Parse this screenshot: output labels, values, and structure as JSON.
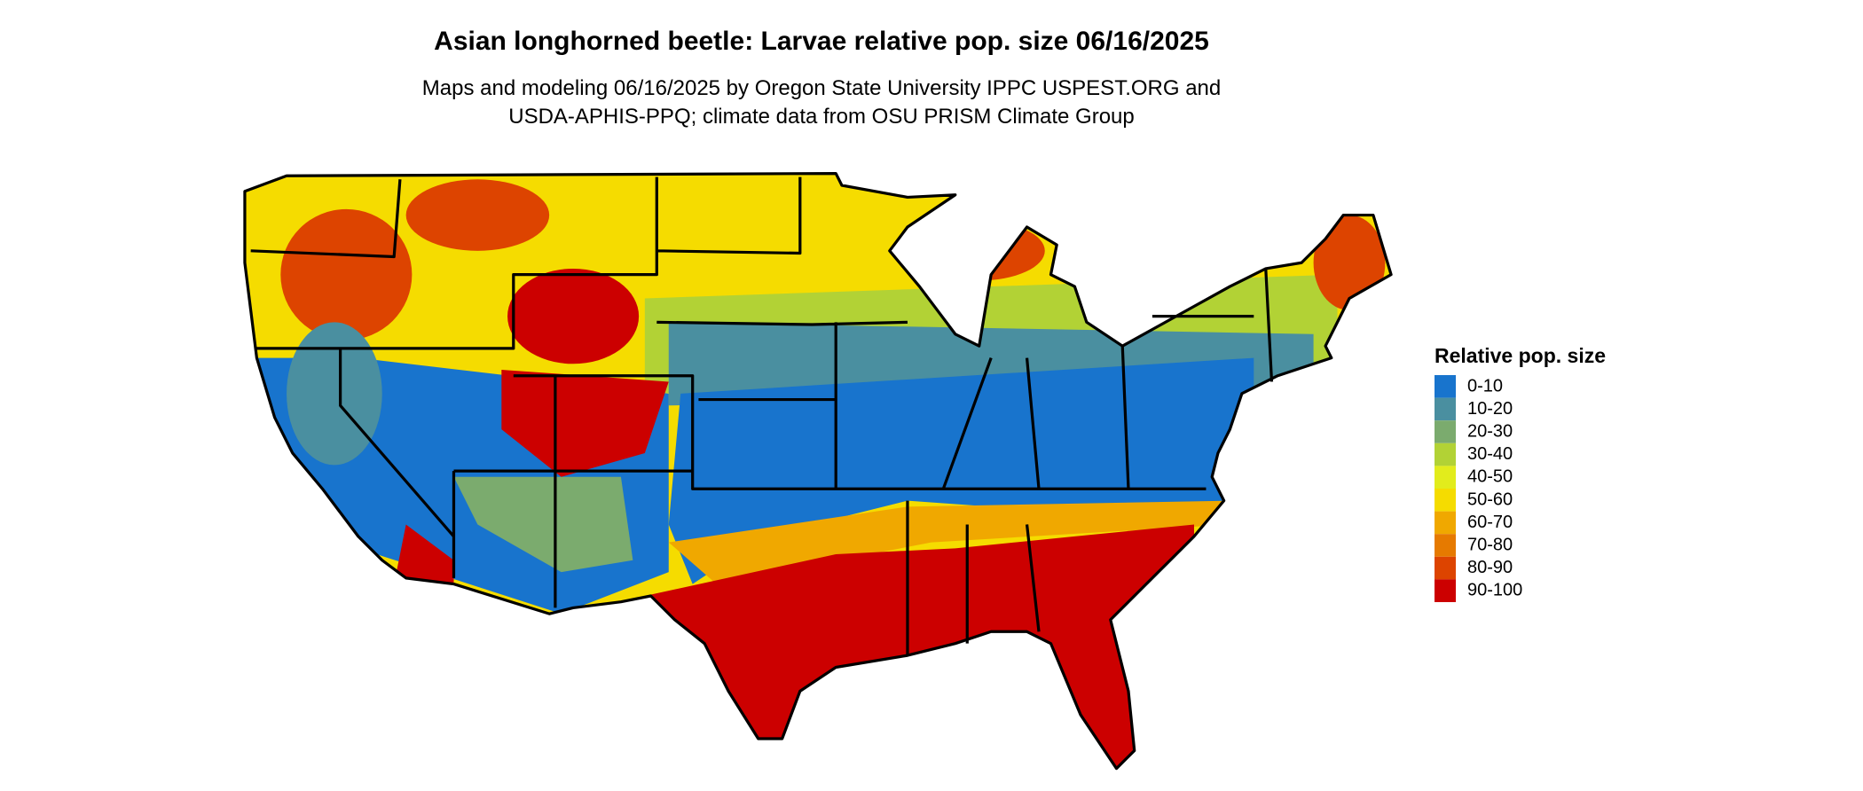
{
  "title": "Asian longhorned beetle: Larvae relative pop. size 06/16/2025",
  "subtitle": [
    "Maps and modeling 06/16/2025 by Oregon State University IPPC USPEST.ORG and",
    "USDA-APHIS-PPQ; climate data from OSU PRISM Climate Group"
  ],
  "legend": {
    "title": "Relative pop. size",
    "items": [
      {
        "label": "0-10",
        "color": "#1874cd"
      },
      {
        "label": "10-20",
        "color": "#4a8fa0"
      },
      {
        "label": "20-30",
        "color": "#7bab6e"
      },
      {
        "label": "30-40",
        "color": "#b2d235"
      },
      {
        "label": "40-50",
        "color": "#e2ec1c"
      },
      {
        "label": "50-60",
        "color": "#f5dc00"
      },
      {
        "label": "60-70",
        "color": "#f0a800"
      },
      {
        "label": "70-80",
        "color": "#e67a00"
      },
      {
        "label": "80-90",
        "color": "#dd4400"
      },
      {
        "label": "90-100",
        "color": "#cc0000"
      }
    ]
  }
}
